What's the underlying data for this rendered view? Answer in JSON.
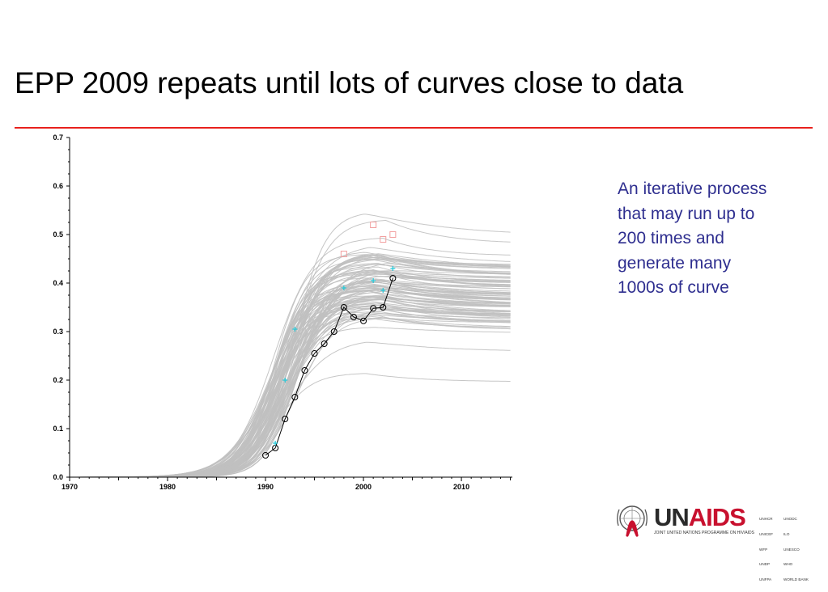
{
  "slide": {
    "title": "EPP 2009 repeats until lots of curves close to data",
    "note": "An iterative process that may run up to 200 times and generate many 1000s of curve"
  },
  "logo": {
    "name_un": "UN",
    "name_aids": "AIDS",
    "subtitle": "JOINT UNITED NATIONS PROGRAMME ON HIV/AIDS",
    "cosponsors_col1": [
      "UNHCR",
      "UNICEF",
      "WFP",
      "UNDP",
      "UNFPA"
    ],
    "cosponsors_col2": [
      "UNODC",
      "ILO",
      "UNESCO",
      "WHO",
      "WORLD BANK"
    ],
    "colors": {
      "un": "#2a2a2a",
      "aids": "#c8102e",
      "ribbon": "#c8102e"
    },
    "icon": "un-emblem-with-red-ribbon-icon"
  },
  "colors": {
    "rule": "#e8211d",
    "note_text": "#2e2e8f",
    "curves": "#c0c0c0",
    "data_black": "#000000",
    "data_cyan": "#22c8d8",
    "data_pink": "#f2a0a0"
  },
  "chart_data": {
    "type": "line",
    "title": "",
    "xlabel": "",
    "ylabel": "",
    "xlim": [
      1970,
      2015.2
    ],
    "ylim": [
      0,
      0.7
    ],
    "x_ticks": [
      1970,
      1980,
      1990,
      2000,
      2010
    ],
    "y_ticks": [
      0.0,
      0.1,
      0.2,
      0.3,
      0.4,
      0.5,
      0.6,
      0.7
    ],
    "y_tick_labels": [
      "0.0",
      "0.1",
      "0.2",
      "0.3",
      "0.4",
      "0.5",
      "0.6",
      "0.7"
    ],
    "grid": false,
    "legend": "none",
    "simulated_curves": {
      "description_count": 100,
      "plateau_min": 0.205,
      "plateau_max": 0.548,
      "curve_top_examples": [
        0.548,
        0.532,
        0.495,
        0.482,
        0.46,
        0.44,
        0.42,
        0.4,
        0.38,
        0.36,
        0.34,
        0.33,
        0.31,
        0.285,
        0.215
      ],
      "end_value_2015_examples": [
        0.5,
        0.49,
        0.46,
        0.45,
        0.42,
        0.4,
        0.38,
        0.36,
        0.34,
        0.33,
        0.31,
        0.275,
        0.205
      ]
    },
    "series": [
      {
        "marker": "circle",
        "color": "#000000",
        "points": [
          [
            1990,
            0.045
          ],
          [
            1991,
            0.06
          ],
          [
            1992,
            0.12
          ],
          [
            1993,
            0.165
          ],
          [
            1994,
            0.22
          ],
          [
            1995,
            0.255
          ],
          [
            1996,
            0.275
          ],
          [
            1997,
            0.3
          ],
          [
            1998,
            0.35
          ],
          [
            1999,
            0.33
          ],
          [
            2000,
            0.322
          ],
          [
            2001,
            0.348
          ],
          [
            2002,
            0.35
          ],
          [
            2003,
            0.41
          ]
        ]
      },
      {
        "marker": "cross",
        "color": "#22c8d8",
        "points": [
          [
            1991,
            0.07
          ],
          [
            1992,
            0.2
          ],
          [
            1993,
            0.305
          ],
          [
            1998,
            0.39
          ],
          [
            2001,
            0.405
          ],
          [
            2002,
            0.385
          ],
          [
            2003,
            0.43
          ]
        ]
      },
      {
        "marker": "square",
        "color": "#f2a0a0",
        "points": [
          [
            1998,
            0.46
          ],
          [
            2001,
            0.52
          ],
          [
            2002,
            0.49
          ],
          [
            2003,
            0.5
          ]
        ]
      }
    ]
  }
}
